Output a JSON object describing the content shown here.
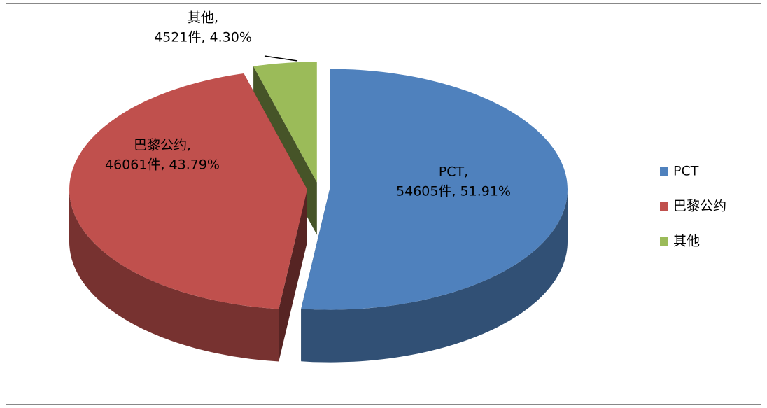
{
  "chart_data": {
    "type": "pie3d",
    "categories": [
      "PCT",
      "巴黎公约",
      "其他"
    ],
    "data_label_names": [
      "PCT,",
      "巴黎公约,",
      "其他,"
    ],
    "values": [
      54605,
      46061,
      4521
    ],
    "value_labels": [
      "54605件, 51.91%",
      "46061件, 43.79%",
      "4521件, 4.30%"
    ],
    "colors": [
      "#4f81bd",
      "#c0504d",
      "#9bbb59"
    ],
    "legend": "right"
  }
}
